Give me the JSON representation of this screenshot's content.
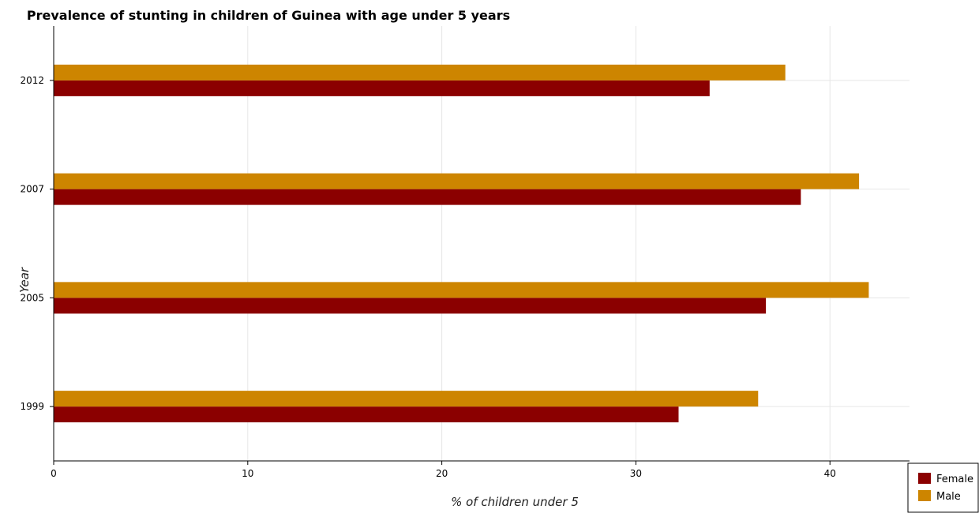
{
  "title": "Prevalence of stunting in children of Guinea with age under 5 years",
  "colors": {
    "female": "#8b0000",
    "male": "#cd8500",
    "grid": "#e6e6e6",
    "axis": "#000000"
  },
  "chart_data": {
    "type": "bar",
    "orientation": "horizontal",
    "title": "Prevalence of stunting in children of Guinea with age under 5 years",
    "xlabel": "% of children under 5",
    "ylabel": "Year",
    "categories": [
      "1999",
      "2005",
      "2007",
      "2012"
    ],
    "series": [
      {
        "name": "Female",
        "values": [
          32.2,
          36.7,
          38.5,
          33.8
        ]
      },
      {
        "name": "Male",
        "values": [
          36.3,
          42.0,
          41.5,
          37.7
        ]
      }
    ],
    "xlim": [
      0,
      44.1
    ],
    "xticks": [
      0,
      10,
      20,
      30,
      40
    ],
    "grid": true,
    "legend_position": "bottom-right"
  }
}
